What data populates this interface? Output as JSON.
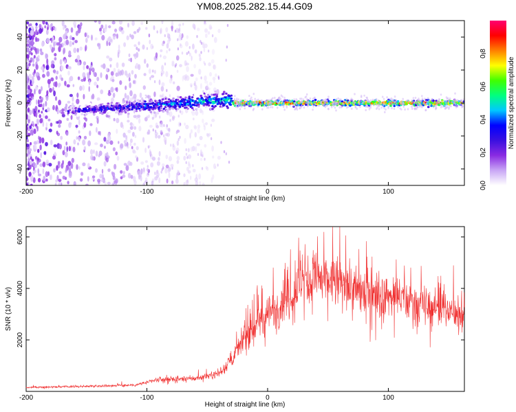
{
  "title": "YM08.2025.282.15.44.G09",
  "colors": {
    "snr_line": "#f03030",
    "axis": "#000000"
  },
  "chart_data": [
    {
      "type": "heatmap",
      "name": "spectrogram",
      "xlabel": "Height of straight line (km)",
      "ylabel": "Frequency (Hz)",
      "xlim": [
        -200,
        163
      ],
      "ylim": [
        -50,
        50
      ],
      "x_ticks": [
        -200,
        -100,
        0,
        100
      ],
      "x_tick_labels": [
        "-200",
        "-100",
        "0",
        "100"
      ],
      "y_ticks": [
        -40,
        -20,
        0,
        20,
        40
      ],
      "y_tick_labels": [
        "-40",
        "-20",
        "0",
        "20",
        "40"
      ],
      "colorbar": {
        "label": "Normalized spectral amplitude",
        "range": [
          0,
          1
        ],
        "ticks": [
          0.0,
          0.2,
          0.4,
          0.6,
          0.8
        ],
        "tick_labels": [
          "0.0",
          "0.2",
          "0.4",
          "0.6",
          "0.8"
        ],
        "colormap": [
          "#ffffff",
          "#c9a7f5",
          "#8a2be2",
          "#3a10e0",
          "#0000ff",
          "#00c8ff",
          "#00ff80",
          "#40ff00",
          "#ffff00",
          "#ff8000",
          "#ff0000",
          "#ff0070"
        ]
      },
      "ridge": {
        "x_start": -165,
        "x_end": 163,
        "freq_at_start": -5,
        "freq_after_minus30": 0
      },
      "noise_region": {
        "x_start": -200,
        "x_end": -80,
        "freq_range": [
          -50,
          50
        ]
      }
    },
    {
      "type": "line",
      "name": "snr",
      "xlabel": "Height of straight line (km)",
      "ylabel": "SNR (10 * v/v)",
      "xlim": [
        -200,
        163
      ],
      "ylim": [
        0,
        6400
      ],
      "x_ticks": [
        -200,
        -100,
        0,
        100
      ],
      "x_tick_labels": [
        "-200",
        "-100",
        "0",
        "100"
      ],
      "y_ticks": [
        2000,
        4000,
        6000
      ],
      "y_tick_labels": [
        "2000",
        "4000",
        "6000"
      ],
      "envelope": {
        "x": [
          -200,
          -150,
          -110,
          -90,
          -60,
          -40,
          -30,
          -20,
          -10,
          0,
          10,
          20,
          30,
          40,
          60,
          80,
          100,
          120,
          140,
          163
        ],
        "y": [
          150,
          200,
          250,
          450,
          500,
          700,
          1200,
          2000,
          2600,
          3000,
          3400,
          3800,
          4300,
          4400,
          4200,
          3900,
          3700,
          3500,
          3200,
          3000
        ]
      }
    }
  ]
}
